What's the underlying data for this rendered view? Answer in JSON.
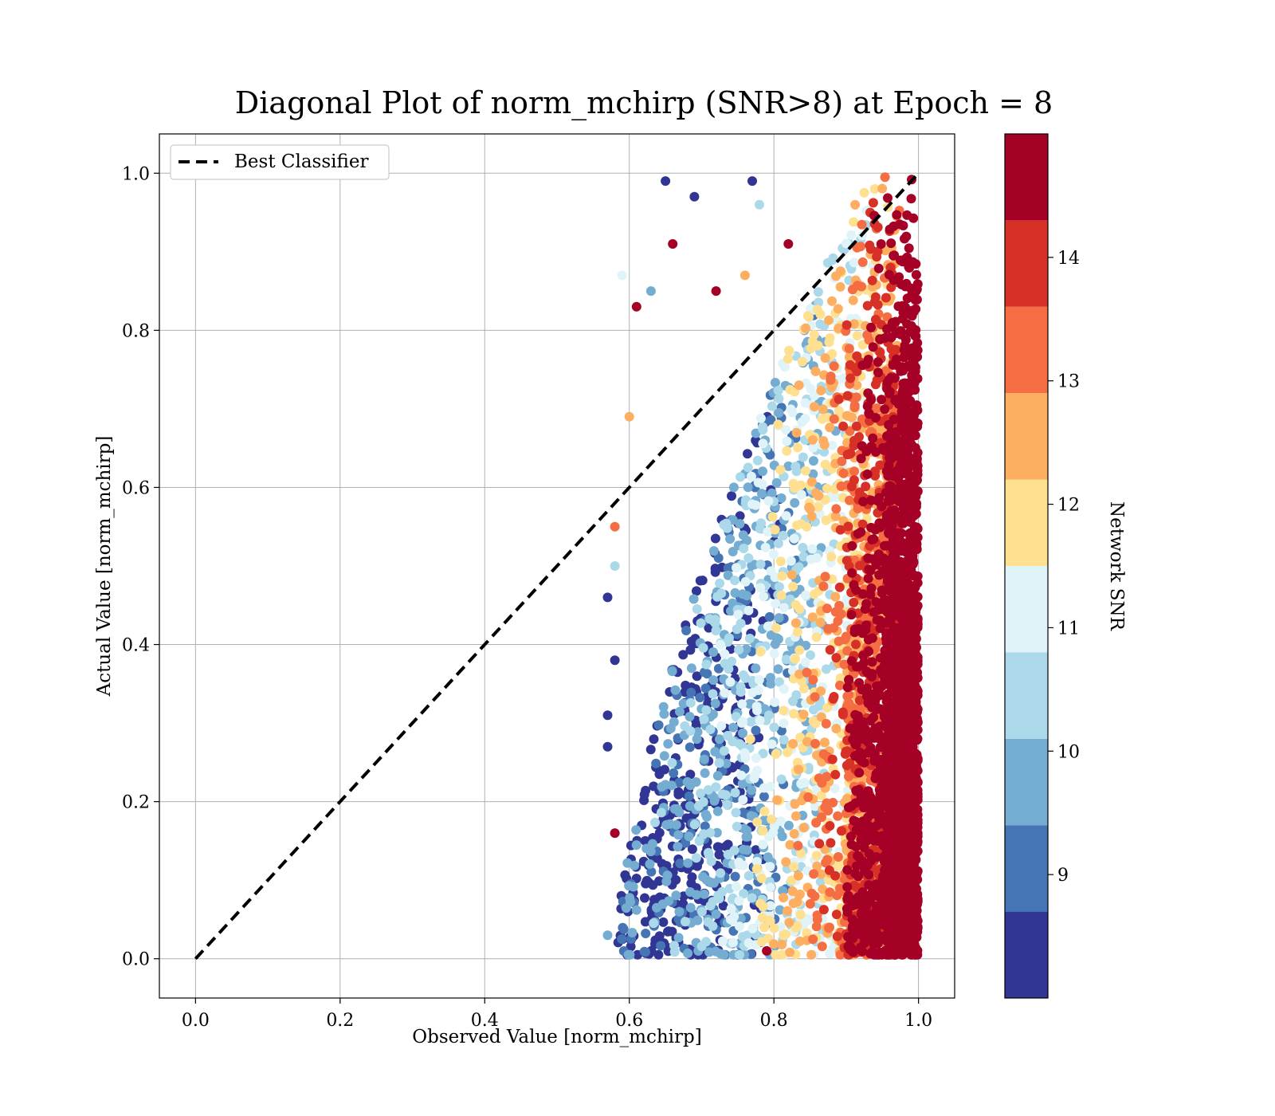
{
  "chart_data": {
    "type": "scatter",
    "title": "Diagonal Plot of norm_mchirp (SNR>8) at Epoch = 8",
    "xlabel": "Observed Value [norm_mchirp]",
    "ylabel": "Actual Value [norm_mchirp]",
    "xlim": [
      -0.05,
      1.05
    ],
    "ylim": [
      -0.05,
      1.05
    ],
    "x_ticks": [
      "0.0",
      "0.2",
      "0.4",
      "0.6",
      "0.8",
      "1.0"
    ],
    "y_ticks": [
      "0.0",
      "0.2",
      "0.4",
      "0.6",
      "0.8",
      "1.0"
    ],
    "grid": true,
    "legend": {
      "placement": "upper-left",
      "entries": [
        {
          "label": "Best Classifier",
          "style": "black dashed line"
        }
      ]
    },
    "reference_line": {
      "label": "Best Classifier",
      "x": [
        0.0,
        1.0
      ],
      "y": [
        0.0,
        1.0
      ],
      "color": "#000000",
      "dash": "dashed"
    },
    "color_axis": {
      "label": "Network SNR",
      "range": [
        8.0,
        15.0
      ],
      "tick_labels": [
        "9",
        "10",
        "11",
        "12",
        "13",
        "14"
      ],
      "tick_values": [
        9,
        10,
        11,
        12,
        13,
        14
      ],
      "bands": 10,
      "colormap": "RdYlBu_r",
      "band_colors": [
        "#313695",
        "#4575b4",
        "#74add1",
        "#abd9e9",
        "#e0f3f8",
        "#fee090",
        "#fdae61",
        "#f46d43",
        "#d73027",
        "#a50026"
      ]
    },
    "point_distribution": {
      "observed_range": [
        0.57,
        1.0
      ],
      "actual_range": [
        0.0,
        1.0
      ],
      "note_trend": "higher SNR points concentrate near observed = 1.0"
    },
    "points": [
      {
        "x": 0.65,
        "y": 0.99,
        "snr": 8.3
      },
      {
        "x": 0.69,
        "y": 0.97,
        "snr": 8.3
      },
      {
        "x": 0.77,
        "y": 0.99,
        "snr": 8.3
      },
      {
        "x": 0.78,
        "y": 0.96,
        "snr": 10.5
      },
      {
        "x": 0.61,
        "y": 0.83,
        "snr": 14.8
      },
      {
        "x": 0.59,
        "y": 0.87,
        "snr": 11.0
      },
      {
        "x": 0.66,
        "y": 0.91,
        "snr": 14.8
      },
      {
        "x": 0.63,
        "y": 0.85,
        "snr": 10.0
      },
      {
        "x": 0.72,
        "y": 0.85,
        "snr": 14.8
      },
      {
        "x": 0.76,
        "y": 0.87,
        "snr": 12.5
      },
      {
        "x": 0.82,
        "y": 0.91,
        "snr": 14.8
      },
      {
        "x": 0.6,
        "y": 0.69,
        "snr": 12.5
      },
      {
        "x": 0.58,
        "y": 0.55,
        "snr": 13.3
      },
      {
        "x": 0.57,
        "y": 0.46,
        "snr": 8.3
      },
      {
        "x": 0.58,
        "y": 0.5,
        "snr": 10.5
      },
      {
        "x": 0.58,
        "y": 0.38,
        "snr": 8.3
      },
      {
        "x": 0.57,
        "y": 0.31,
        "snr": 8.3
      },
      {
        "x": 0.57,
        "y": 0.27,
        "snr": 8.3
      },
      {
        "x": 0.58,
        "y": 0.16,
        "snr": 14.8
      },
      {
        "x": 0.57,
        "y": 0.03,
        "snr": 9.5
      },
      {
        "x": 0.98,
        "y": 0.02,
        "snr": 14.8
      },
      {
        "x": 0.94,
        "y": 0.03,
        "snr": 8.3
      },
      {
        "x": 0.71,
        "y": 0.01,
        "snr": 8.3
      },
      {
        "x": 0.79,
        "y": 0.01,
        "snr": 14.8
      }
    ]
  }
}
